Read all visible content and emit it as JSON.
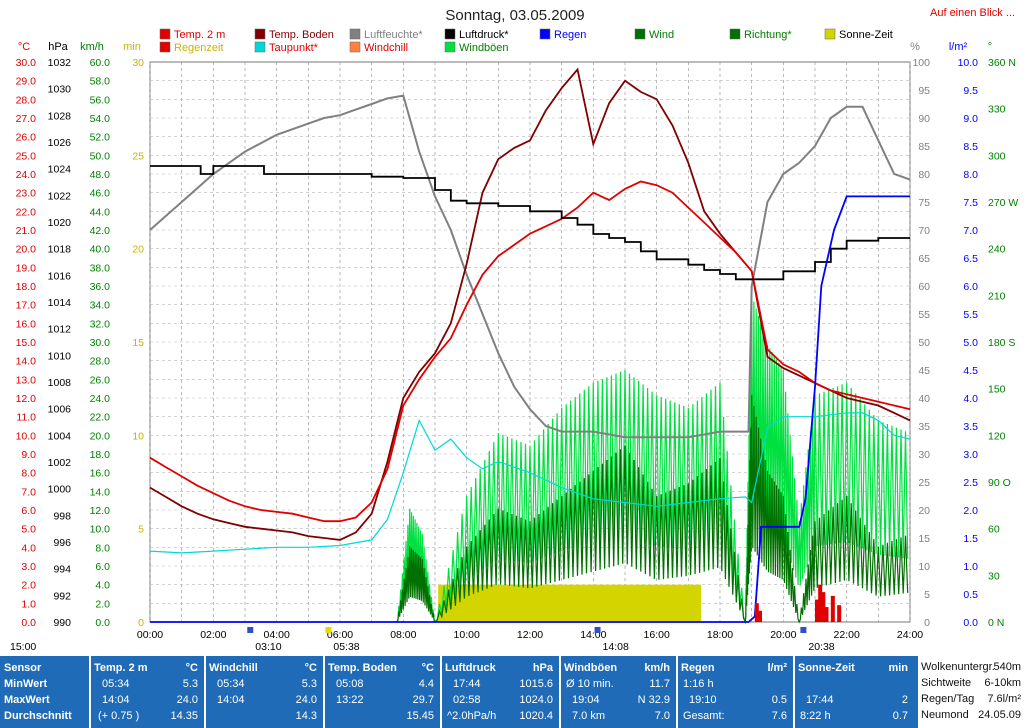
{
  "header": {
    "title": "Sonntag, 03.05.2009",
    "link": "Auf einen Blick ..."
  },
  "legend": [
    {
      "label": "Temp. 2 m",
      "color": "#e00000",
      "text_color": "#e00000"
    },
    {
      "label": "Regenzeit",
      "color": "#e00000",
      "text_color": "#c8b400"
    },
    {
      "label": "Temp. Boden",
      "color": "#800000",
      "text_color": "#800000"
    },
    {
      "label": "Taupunkt*",
      "color": "#00d8d8",
      "text_color": "#e00000"
    },
    {
      "label": "Luftfeuchte*",
      "color": "#808080",
      "text_color": "#808080"
    },
    {
      "label": "Windchill",
      "color": "#ff8040",
      "text_color": "#e00000"
    },
    {
      "label": "Luftdruck*",
      "color": "#000000",
      "text_color": "#000000"
    },
    {
      "label": "Windböen",
      "color": "#00e040",
      "text_color": "#008000"
    },
    {
      "label": "Regen",
      "color": "#0000ff",
      "text_color": "#0000ff"
    },
    {
      "label": "Wind",
      "color": "#007000",
      "text_color": "#008000"
    },
    {
      "label": "Richtung*",
      "color": "#007000",
      "text_color": "#008000"
    },
    {
      "label": "Sonne-Zeit",
      "color": "#d4d400",
      "text_color": "#000000"
    }
  ],
  "axes_headers": {
    "temp": "°C",
    "press": "hPa",
    "wind": "km/h",
    "min": "min",
    "pct": "%",
    "rain": "l/m²",
    "dir": "°"
  },
  "chart_data": {
    "type": "line",
    "x_unit": "hour of day",
    "xlim": [
      0,
      24
    ],
    "x_ticks": [
      "00:00",
      "02:00",
      "04:00",
      "06:00",
      "08:00",
      "10:00",
      "12:00",
      "14:00",
      "16:00",
      "18:00",
      "20:00",
      "22:00",
      "24:00"
    ],
    "y_axes": {
      "temp_c": {
        "range": [
          0,
          30
        ],
        "ticks": [
          "30.0",
          "29.0",
          "28.0",
          "27.0",
          "26.0",
          "25.0",
          "24.0",
          "23.0",
          "22.0",
          "21.0",
          "20.0",
          "19.0",
          "18.0",
          "17.0",
          "16.0",
          "15.0",
          "14.0",
          "13.0",
          "12.0",
          "11.0",
          "10.0",
          "9.0",
          "8.0",
          "7.0",
          "6.0",
          "5.0",
          "4.0",
          "3.0",
          "2.0",
          "1.0",
          "0.0"
        ]
      },
      "pressure_hpa": {
        "range": [
          990,
          1032
        ],
        "ticks": [
          "1032",
          "1030",
          "1028",
          "1026",
          "1024",
          "1022",
          "1020",
          "1018",
          "1016",
          "1014",
          "1012",
          "1010",
          "1008",
          "1006",
          "1004",
          "1002",
          "1000",
          "998",
          "996",
          "994",
          "992",
          "990"
        ]
      },
      "wind_kmh": {
        "range": [
          0,
          60
        ],
        "ticks": [
          "60.0",
          "58.0",
          "56.0",
          "54.0",
          "52.0",
          "50.0",
          "48.0",
          "46.0",
          "44.0",
          "42.0",
          "40.0",
          "38.0",
          "36.0",
          "34.0",
          "32.0",
          "30.0",
          "28.0",
          "26.0",
          "24.0",
          "22.0",
          "20.0",
          "18.0",
          "16.0",
          "14.0",
          "12.0",
          "10.0",
          "8.0",
          "6.0",
          "4.0",
          "2.0",
          "0.0"
        ]
      },
      "sun_min": {
        "range": [
          0,
          30
        ],
        "ticks": [
          "30",
          "25",
          "20",
          "15",
          "10",
          "5",
          "0"
        ]
      },
      "humidity_pct": {
        "range": [
          0,
          100
        ],
        "ticks": [
          "100",
          "95",
          "90",
          "85",
          "80",
          "75",
          "70",
          "65",
          "60",
          "55",
          "50",
          "45",
          "40",
          "35",
          "30",
          "25",
          "20",
          "15",
          "10",
          "5",
          "0"
        ]
      },
      "rain_lm2": {
        "range": [
          0,
          10
        ],
        "ticks": [
          "10.0",
          "9.5",
          "9.0",
          "8.5",
          "8.0",
          "7.5",
          "7.0",
          "6.5",
          "6.0",
          "5.5",
          "5.0",
          "4.5",
          "4.0",
          "3.5",
          "3.0",
          "2.5",
          "2.0",
          "1.5",
          "1.0",
          "0.5",
          "0.0"
        ]
      },
      "direction_deg": {
        "range": [
          0,
          360
        ],
        "ticks": [
          "360 N",
          "330",
          "300",
          "270 W",
          "240",
          "210",
          "180 S",
          "150",
          "120",
          "90 O",
          "60",
          "30",
          "0 N"
        ]
      }
    },
    "series": [
      {
        "name": "Temp. 2 m",
        "axis": "temp_c",
        "color": "#e00000",
        "x": [
          0,
          0.5,
          1,
          1.5,
          2,
          2.5,
          3,
          3.5,
          4,
          4.5,
          5,
          5.5,
          6,
          6.5,
          7,
          7.5,
          8,
          8.5,
          9,
          9.5,
          10,
          10.5,
          11,
          11.5,
          12,
          12.5,
          13,
          13.5,
          14,
          14.5,
          15,
          15.5,
          16,
          16.5,
          17,
          17.5,
          18,
          18.5,
          19,
          19.5,
          20,
          20.5,
          21,
          21.5,
          22,
          22.5,
          23,
          23.5,
          24
        ],
        "y": [
          8.8,
          8.3,
          7.8,
          7.3,
          6.9,
          6.5,
          6.2,
          6.0,
          5.9,
          5.8,
          5.6,
          5.4,
          5.4,
          5.6,
          6.4,
          8.2,
          11.6,
          13.0,
          14.2,
          15.2,
          17.0,
          18.6,
          19.6,
          20.2,
          20.8,
          21.2,
          21.6,
          22.2,
          23.0,
          22.6,
          23.2,
          23.6,
          23.4,
          23.0,
          22.2,
          21.4,
          20.6,
          19.8,
          18.8,
          14.6,
          13.8,
          13.4,
          12.8,
          12.4,
          12.2,
          12.0,
          11.8,
          11.6,
          11.4
        ]
      },
      {
        "name": "Temp. Boden",
        "axis": "temp_c",
        "color": "#800000",
        "x": [
          0,
          0.5,
          1,
          1.5,
          2,
          2.5,
          3,
          3.5,
          4,
          4.5,
          5,
          5.5,
          6,
          6.5,
          7,
          7.5,
          8,
          8.5,
          9,
          9.5,
          10,
          10.5,
          11,
          11.5,
          12,
          12.5,
          13,
          13.5,
          14,
          14.5,
          15,
          15.5,
          16,
          16.5,
          17,
          17.5,
          18,
          18.5,
          19,
          19.5,
          20,
          20.5,
          21,
          21.5,
          22,
          22.5,
          23,
          23.5,
          24
        ],
        "y": [
          7.2,
          6.7,
          6.2,
          5.8,
          5.5,
          5.3,
          5.1,
          5.0,
          4.9,
          4.8,
          4.6,
          4.5,
          4.4,
          4.8,
          5.8,
          8.6,
          12.0,
          13.4,
          14.4,
          16.0,
          19.2,
          23.0,
          24.8,
          25.4,
          25.8,
          27.4,
          28.6,
          29.6,
          25.6,
          27.8,
          29.0,
          28.4,
          28.0,
          26.6,
          24.6,
          22.0,
          20.8,
          19.8,
          18.8,
          14.2,
          13.6,
          13.2,
          12.8,
          12.4,
          12.0,
          11.8,
          11.6,
          11.2,
          10.8
        ]
      },
      {
        "name": "Taupunkt*",
        "axis": "temp_c",
        "color": "#00d8d8",
        "x": [
          0,
          1,
          2,
          3,
          4,
          5,
          6,
          7,
          7.5,
          8,
          8.5,
          9,
          9.5,
          10,
          10.5,
          11,
          12,
          13,
          14,
          15,
          16,
          17,
          18,
          18.8,
          19,
          19.5,
          20,
          21,
          22,
          22.5,
          23,
          23.5,
          24
        ],
        "y": [
          3.8,
          3.7,
          3.8,
          3.9,
          4.0,
          4.0,
          4.1,
          4.4,
          5.5,
          8.0,
          10.8,
          9.2,
          9.8,
          8.8,
          8.2,
          8.6,
          8.0,
          7.2,
          6.6,
          6.4,
          6.2,
          6.4,
          6.6,
          6.7,
          6.4,
          10.4,
          11.0,
          11.0,
          11.2,
          11.2,
          10.8,
          10.0,
          9.8
        ]
      },
      {
        "name": "Luftfeuchte*",
        "axis": "humidity_pct",
        "color": "#808080",
        "x": [
          0,
          0.5,
          1,
          1.5,
          2,
          2.5,
          3,
          3.5,
          4,
          4.5,
          5,
          5.5,
          6,
          6.5,
          7,
          7.5,
          8,
          8.5,
          9,
          9.5,
          10,
          10.5,
          11,
          11.5,
          12,
          12.5,
          13,
          14,
          15,
          16,
          17,
          18,
          18.9,
          19,
          19.5,
          20,
          20.5,
          21,
          21.5,
          22,
          22.5,
          23,
          23.5,
          24
        ],
        "y": [
          70,
          72.5,
          75,
          77.5,
          80,
          82,
          84,
          85.5,
          87,
          88,
          89,
          90,
          90.5,
          91.5,
          92.5,
          93.5,
          94,
          84,
          76,
          70,
          62,
          55,
          48,
          42,
          38,
          35,
          34,
          34,
          33,
          33,
          33,
          34,
          34,
          60,
          75,
          80,
          82,
          85,
          90,
          92,
          92,
          86,
          80,
          79
        ]
      },
      {
        "name": "Luftdruck*",
        "axis": "pressure_hpa",
        "color": "#000000",
        "x": [
          0,
          1.3,
          1.6,
          2,
          3.4,
          3.6,
          4,
          5,
          6,
          7,
          8,
          9,
          9.5,
          10,
          11,
          12,
          13,
          13.5,
          14,
          14.5,
          15,
          15.5,
          16,
          17,
          17.5,
          18,
          18.5,
          19,
          20,
          21,
          21.5,
          22,
          23,
          24
        ],
        "y": [
          1024.2,
          1024.2,
          1023.6,
          1024.2,
          1024.2,
          1023.6,
          1023.6,
          1023.6,
          1023.6,
          1023.4,
          1023.3,
          1022.4,
          1021.6,
          1021.4,
          1021.2,
          1020.8,
          1020.3,
          1019.8,
          1019.1,
          1018.8,
          1018.5,
          1017.8,
          1017.2,
          1016.8,
          1016.4,
          1016.1,
          1015.7,
          1015.7,
          1016.3,
          1017.0,
          1018.0,
          1018.6,
          1018.8,
          1018.8
        ]
      },
      {
        "name": "Regen",
        "axis": "rain_lm2",
        "color": "#0000ff",
        "x": [
          0,
          18.9,
          19.1,
          19.3,
          20.5,
          20.7,
          21.0,
          21.2,
          21.6,
          22.0,
          24.0
        ],
        "y": [
          0,
          0,
          0.1,
          1.7,
          1.7,
          2.2,
          4.2,
          6.0,
          7.0,
          7.6,
          7.6
        ]
      },
      {
        "name": "Wind",
        "axis": "wind_kmh",
        "color": "#007000",
        "x": [
          7.8,
          8.2,
          8.6,
          9.0,
          10.0,
          11.0,
          12.0,
          13.0,
          14.0,
          15.0,
          16.0,
          17.0,
          18.0,
          18.8,
          19.0,
          19.5,
          20.0,
          20.5,
          21.0,
          22.0,
          23.0,
          24.0
        ],
        "y": [
          0,
          6,
          5,
          0,
          6,
          9,
          8,
          10,
          12,
          14,
          10,
          11,
          13,
          0,
          18,
          12,
          10,
          0,
          8,
          10,
          6,
          7
        ]
      },
      {
        "name": "Windböen",
        "axis": "wind_kmh",
        "color": "#00e040",
        "x": [
          7.8,
          8.2,
          8.6,
          9.0,
          10.0,
          11.0,
          12.0,
          13.0,
          14.0,
          15.0,
          16.0,
          17.0,
          18.0,
          18.8,
          19.0,
          19.5,
          20.0,
          20.5,
          21.0,
          22.0,
          23.0,
          24.0
        ],
        "y": [
          0,
          9,
          7,
          0,
          10,
          15,
          14,
          17,
          19,
          20,
          18,
          17,
          19,
          0,
          26,
          22,
          20,
          8,
          18,
          19,
          16,
          15
        ]
      },
      {
        "name": "Sonne-Zeit",
        "axis": "sun_min",
        "color": "#d4d400",
        "x": [
          9.1,
          17.4
        ],
        "y": [
          2,
          2
        ]
      }
    ],
    "markers_below_axis": [
      "03:10",
      "05:38",
      "14:08",
      "20:38"
    ],
    "extra_label": "15:00"
  },
  "stats": {
    "rows": [
      "Sensor",
      "MinWert",
      "MaxWert",
      "Durchschnitt"
    ],
    "temp": {
      "title": "Temp. 2 m",
      "unit": "°C",
      "min_time": "05:34",
      "min": "5.3",
      "max_time": "14:04",
      "max": "24.0",
      "avg_note": "(+ 0.75 )",
      "avg": "14.35"
    },
    "windchill": {
      "title": "Windchill",
      "unit": "°C",
      "min_time": "05:34",
      "min": "5.3",
      "max_time": "14:04",
      "max": "24.0",
      "avg": "14.3"
    },
    "boden": {
      "title": "Temp. Boden",
      "unit": "°C",
      "min_time": "05:08",
      "min": "4.4",
      "max_time": "13:22",
      "max": "29.7",
      "avg": "15.45"
    },
    "druck": {
      "title": "Luftdruck",
      "unit": "hPa",
      "min_time": "17:44",
      "min": "1015.6",
      "max_time": "02:58",
      "max": "1024.0",
      "avg_note": "^2.0hPa/h",
      "avg": "1020.4"
    },
    "boeen": {
      "title": "Windböen",
      "unit": "km/h",
      "r1a": "Ø 10 min.",
      "r1b": "11.7",
      "r2a": "19:04",
      "r2b": "N 32.9",
      "r3a": "7.0 km",
      "r3b": "7.0"
    },
    "regen": {
      "title": "Regen",
      "unit": "l/m²",
      "r1a": "1:16 h",
      "r1b": "",
      "r2a": "19:10",
      "r2b": "0.5",
      "r3a": "Gesamt:",
      "r3b": "7.6"
    },
    "sonne": {
      "title": "Sonne-Zeit",
      "unit": "min",
      "r1a": "",
      "r1b": "",
      "r2a": "17:44",
      "r2b": "2",
      "r3a": "8:22 h",
      "r3b": "0.7"
    },
    "wk": [
      {
        "k": "Wolkenuntergr.",
        "v": "540m"
      },
      {
        "k": "Sichtweite",
        "v": "6-10km"
      },
      {
        "k": "Regen/Tag",
        "v": "7.6l/m²"
      },
      {
        "k": "Neumond",
        "v": "24.05.09"
      }
    ]
  }
}
